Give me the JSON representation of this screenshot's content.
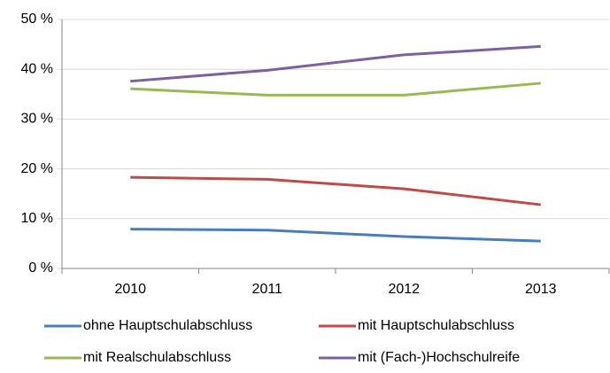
{
  "chart_data": {
    "type": "line",
    "categories": [
      "2010",
      "2011",
      "2012",
      "2013"
    ],
    "series": [
      {
        "name": "ohne Hauptschulabschluss",
        "color": "#4a7ebb",
        "values": [
          7.9,
          7.7,
          6.4,
          5.5
        ]
      },
      {
        "name": "mit Hauptschulabschluss",
        "color": "#be4b48",
        "values": [
          18.3,
          17.9,
          16.0,
          12.8
        ]
      },
      {
        "name": "mit Realschulabschluss",
        "color": "#98b954",
        "values": [
          36.1,
          34.8,
          34.8,
          37.2
        ]
      },
      {
        "name": "mit (Fach-)Hochschulreife",
        "color": "#7d60a0",
        "values": [
          37.6,
          39.8,
          42.9,
          44.6
        ]
      }
    ],
    "ylim": [
      0,
      50
    ],
    "yticks": [
      {
        "value": 0,
        "label": "0 %"
      },
      {
        "value": 10,
        "label": "10 %"
      },
      {
        "value": 20,
        "label": "20 %"
      },
      {
        "value": 30,
        "label": "30 %"
      },
      {
        "value": 40,
        "label": "40 %"
      },
      {
        "value": 50,
        "label": "50 %"
      }
    ],
    "grid": true,
    "legend": "bottom"
  }
}
